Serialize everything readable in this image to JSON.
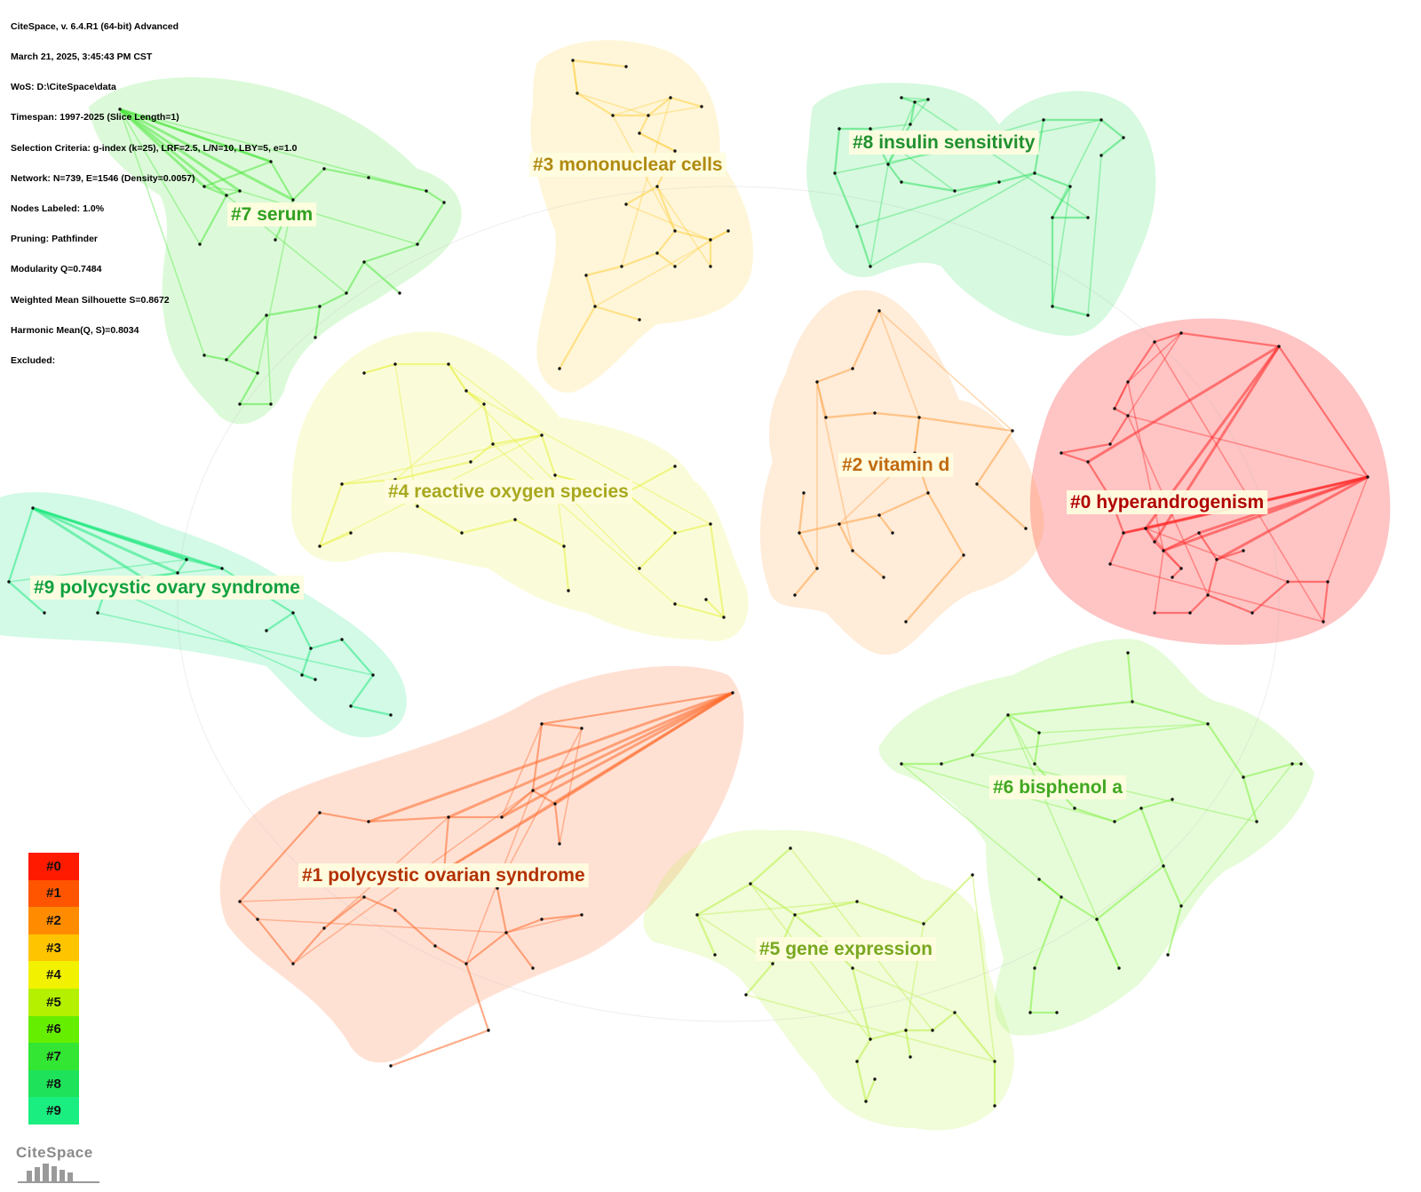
{
  "header": {
    "lines": [
      "CiteSpace, v. 6.4.R1 (64-bit) Advanced",
      "March 21, 2025, 3:45:43 PM CST",
      "WoS: D:\\CiteSpace\\data",
      "Timespan: 1997-2025 (Slice Length=1)",
      "Selection Criteria: g-index (k=25), LRF=2.5, L/N=10, LBY=5, e=1.0",
      "Network: N=739, E=1546 (Density=0.0057)",
      "Nodes Labeled: 1.0%",
      "Pruning: Pathfinder",
      "Modularity Q=0.7484",
      "Weighted Mean Silhouette S=0.8672",
      "Harmonic Mean(Q, S)=0.8034",
      "Excluded:"
    ]
  },
  "clusters": [
    {
      "id": 0,
      "label": "#0 hyperandrogenism",
      "color": "#ff2a2a",
      "text_color": "#b00000"
    },
    {
      "id": 1,
      "label": "#1 polycystic ovarian syndrome",
      "color": "#ff6a2a",
      "text_color": "#b33000"
    },
    {
      "id": 2,
      "label": "#2 vitamin d",
      "color": "#ffa040",
      "text_color": "#c06a10"
    },
    {
      "id": 3,
      "label": "#3 mononuclear cells",
      "color": "#ffd040",
      "text_color": "#b08a10"
    },
    {
      "id": 4,
      "label": "#4 reactive oxygen species",
      "color": "#e8f040",
      "text_color": "#a8a820"
    },
    {
      "id": 5,
      "label": "#5 gene expression",
      "color": "#b8f040",
      "text_color": "#78a820"
    },
    {
      "id": 6,
      "label": "#6 bisphenol a",
      "color": "#80f040",
      "text_color": "#40a820"
    },
    {
      "id": 7,
      "label": "#7 serum",
      "color": "#50e840",
      "text_color": "#30a020"
    },
    {
      "id": 8,
      "label": "#8 insulin sensitivity",
      "color": "#30e060",
      "text_color": "#209030"
    },
    {
      "id": 9,
      "label": "#9 polycystic ovary syndrome",
      "color": "#20e880",
      "text_color": "#10a040"
    }
  ],
  "legend": {
    "items": [
      {
        "label": "#0",
        "color": "#ff1a00"
      },
      {
        "label": "#1",
        "color": "#ff5500"
      },
      {
        "label": "#2",
        "color": "#ff8c00"
      },
      {
        "label": "#3",
        "color": "#ffc400"
      },
      {
        "label": "#4",
        "color": "#f2f200"
      },
      {
        "label": "#5",
        "color": "#b4f000"
      },
      {
        "label": "#6",
        "color": "#66ee00"
      },
      {
        "label": "#7",
        "color": "#33e633"
      },
      {
        "label": "#8",
        "color": "#1ee35a"
      },
      {
        "label": "#9",
        "color": "#1aee80"
      }
    ]
  },
  "logo": {
    "text": "CiteSpace"
  }
}
